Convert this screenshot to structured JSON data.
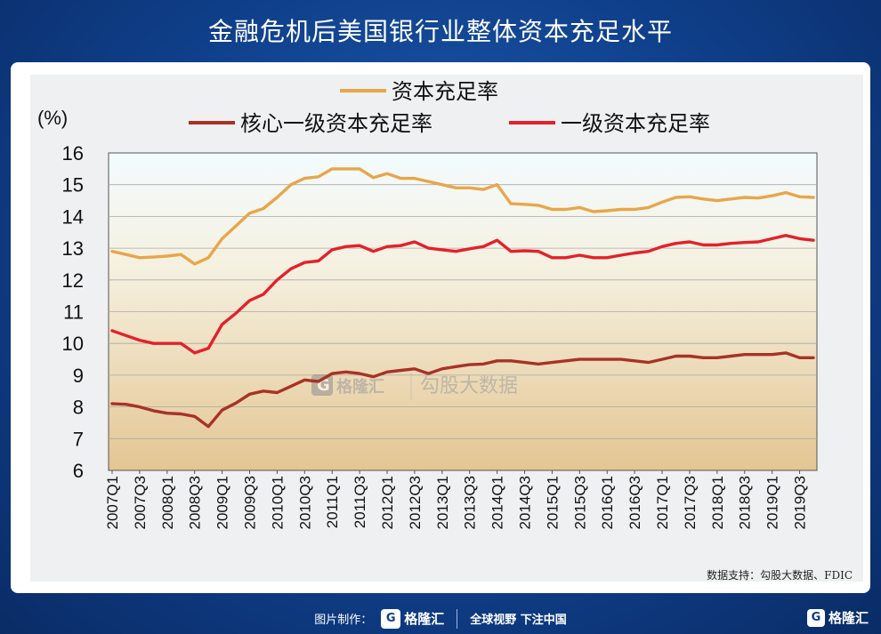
{
  "title": "金融危机后美国银行业整体资本充足水平",
  "source": "数据支持：勾股大数据、FDIC",
  "watermark": {
    "brand": "格隆汇",
    "sub": "勾股大数据"
  },
  "footer": {
    "made_by": "图片制作：",
    "brand": "格隆汇",
    "slogan": "全球视野 下注中国"
  },
  "corner_brand": "格隆汇",
  "chart_data": {
    "type": "line",
    "ylabel": "(%)",
    "ylim": [
      6,
      16
    ],
    "yticks": [
      "6",
      "7",
      "8",
      "9",
      "10",
      "11",
      "12",
      "13",
      "14",
      "15",
      "16"
    ],
    "grid": true,
    "legend_position": "top",
    "x": [
      "2007Q1",
      "2007Q2",
      "2007Q3",
      "2007Q4",
      "2008Q1",
      "2008Q2",
      "2008Q3",
      "2008Q4",
      "2009Q1",
      "2009Q2",
      "2009Q3",
      "2009Q4",
      "2010Q1",
      "2010Q2",
      "2010Q3",
      "2010Q4",
      "2011Q1",
      "2011Q2",
      "2011Q3",
      "2011Q4",
      "2012Q1",
      "2012Q2",
      "2012Q3",
      "2012Q4",
      "2013Q1",
      "2013Q2",
      "2013Q3",
      "2013Q4",
      "2014Q1",
      "2014Q2",
      "2014Q3",
      "2014Q4",
      "2015Q1",
      "2015Q2",
      "2015Q3",
      "2015Q4",
      "2016Q1",
      "2016Q2",
      "2016Q3",
      "2016Q4",
      "2017Q1",
      "2017Q2",
      "2017Q3",
      "2017Q4",
      "2018Q1",
      "2018Q2",
      "2018Q3",
      "2018Q4",
      "2019Q1",
      "2019Q2",
      "2019Q3",
      "2019Q4"
    ],
    "xtick_labels": [
      "2007Q1",
      "2007Q3",
      "2008Q1",
      "2008Q3",
      "2009Q1",
      "2009Q3",
      "2010Q1",
      "2010Q3",
      "2011Q1",
      "2011Q3",
      "2012Q1",
      "2012Q3",
      "2013Q1",
      "2013Q3",
      "2014Q1",
      "2014Q3",
      "2015Q1",
      "2015Q3",
      "2016Q1",
      "2016Q3",
      "2017Q1",
      "2017Q3",
      "2018Q1",
      "2018Q3",
      "2019Q1",
      "2019Q3"
    ],
    "series": [
      {
        "name": "资本充足率",
        "color": "#e8a64a",
        "values": [
          12.9,
          12.8,
          12.7,
          12.72,
          12.75,
          12.8,
          12.5,
          12.7,
          13.3,
          13.7,
          14.1,
          14.25,
          14.6,
          15.0,
          15.2,
          15.25,
          15.5,
          15.5,
          15.5,
          15.22,
          15.35,
          15.2,
          15.2,
          15.1,
          15.0,
          14.9,
          14.9,
          14.85,
          15.0,
          14.4,
          14.38,
          14.35,
          14.22,
          14.22,
          14.28,
          14.15,
          14.18,
          14.22,
          14.22,
          14.28,
          14.45,
          14.6,
          14.62,
          14.55,
          14.5,
          14.55,
          14.6,
          14.58,
          14.65,
          14.75,
          14.62,
          14.6
        ]
      },
      {
        "name": "核心一级资本充足率",
        "color": "#a93226",
        "values": [
          8.1,
          8.08,
          8.0,
          7.88,
          7.8,
          7.78,
          7.7,
          7.38,
          7.9,
          8.12,
          8.4,
          8.5,
          8.45,
          8.65,
          8.85,
          8.8,
          9.05,
          9.1,
          9.05,
          8.95,
          9.1,
          9.15,
          9.2,
          9.05,
          9.2,
          9.27,
          9.33,
          9.35,
          9.45,
          9.45,
          9.4,
          9.35,
          9.4,
          9.45,
          9.5,
          9.5,
          9.5,
          9.5,
          9.45,
          9.4,
          9.5,
          9.6,
          9.6,
          9.55,
          9.55,
          9.6,
          9.65,
          9.65,
          9.65,
          9.7,
          9.55,
          9.55
        ]
      },
      {
        "name": "一级资本充足率",
        "color": "#e3212b",
        "values": [
          10.4,
          10.25,
          10.1,
          10.0,
          10.0,
          10.0,
          9.7,
          9.85,
          10.6,
          10.95,
          11.35,
          11.55,
          12.0,
          12.35,
          12.55,
          12.6,
          12.95,
          13.05,
          13.08,
          12.9,
          13.05,
          13.08,
          13.2,
          13.0,
          12.95,
          12.9,
          12.98,
          13.05,
          13.25,
          12.9,
          12.92,
          12.9,
          12.7,
          12.7,
          12.78,
          12.7,
          12.7,
          12.78,
          12.85,
          12.9,
          13.05,
          13.15,
          13.2,
          13.1,
          13.1,
          13.15,
          13.18,
          13.2,
          13.3,
          13.4,
          13.3,
          13.25
        ]
      }
    ]
  }
}
